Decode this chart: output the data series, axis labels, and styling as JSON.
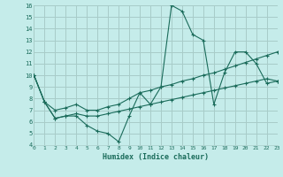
{
  "xlabel": "Humidex (Indice chaleur)",
  "ylabel": "",
  "background_color": "#c5ecea",
  "grid_color": "#a8ccc8",
  "line_color": "#1a6b5a",
  "xlim": [
    0,
    23
  ],
  "ylim": [
    4,
    16
  ],
  "xticks": [
    0,
    1,
    2,
    3,
    4,
    5,
    6,
    7,
    8,
    9,
    10,
    11,
    12,
    13,
    14,
    15,
    16,
    17,
    18,
    19,
    20,
    21,
    22,
    23
  ],
  "yticks": [
    4,
    5,
    6,
    7,
    8,
    9,
    10,
    11,
    12,
    13,
    14,
    15,
    16
  ],
  "lines": [
    {
      "x": [
        0,
        1,
        2,
        3,
        4,
        5,
        6,
        7,
        8,
        9,
        10,
        11,
        12,
        13,
        14,
        15,
        16,
        17,
        18,
        19,
        20,
        21,
        22,
        23
      ],
      "y": [
        10,
        7.7,
        6.3,
        6.5,
        6.5,
        5.7,
        5.2,
        5.0,
        4.3,
        6.5,
        8.5,
        7.5,
        9.0,
        16.0,
        15.5,
        13.5,
        13.0,
        7.5,
        10.2,
        12.0,
        12.0,
        11.0,
        9.3,
        9.5
      ]
    },
    {
      "x": [
        0,
        1,
        2,
        3,
        4,
        5,
        6,
        7,
        8,
        9,
        10,
        11,
        12,
        13,
        14,
        15,
        16,
        17,
        18,
        19,
        20,
        21,
        22,
        23
      ],
      "y": [
        10,
        7.7,
        7.0,
        7.2,
        7.5,
        7.0,
        7.0,
        7.3,
        7.5,
        8.0,
        8.5,
        8.7,
        9.0,
        9.2,
        9.5,
        9.7,
        10.0,
        10.2,
        10.5,
        10.8,
        11.1,
        11.4,
        11.7,
        12.0
      ]
    },
    {
      "x": [
        0,
        1,
        2,
        3,
        4,
        5,
        6,
        7,
        8,
        9,
        10,
        11,
        12,
        13,
        14,
        15,
        16,
        17,
        18,
        19,
        20,
        21,
        22,
        23
      ],
      "y": [
        10,
        7.7,
        6.3,
        6.5,
        6.7,
        6.5,
        6.5,
        6.7,
        6.9,
        7.1,
        7.3,
        7.5,
        7.7,
        7.9,
        8.1,
        8.3,
        8.5,
        8.7,
        8.9,
        9.1,
        9.3,
        9.5,
        9.7,
        9.5
      ]
    }
  ]
}
